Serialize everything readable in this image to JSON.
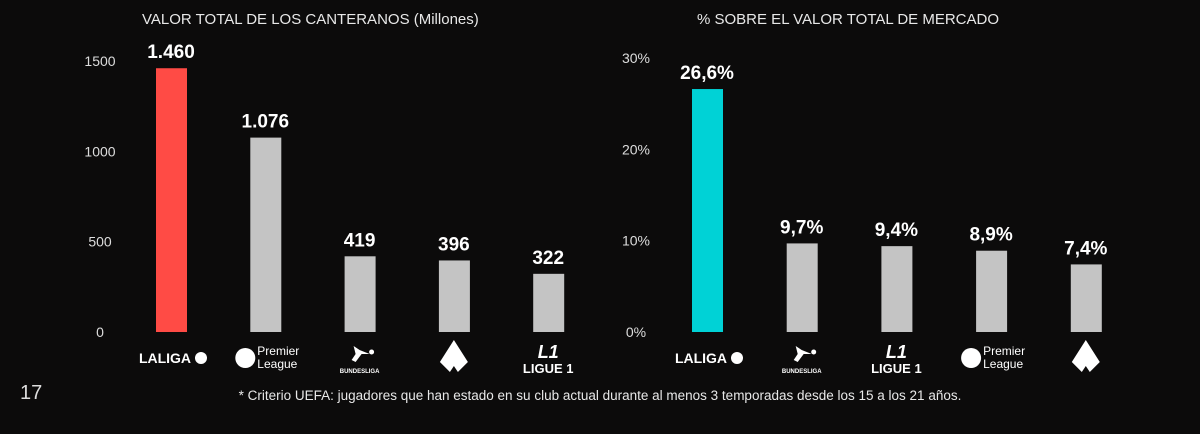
{
  "page_number": "17",
  "footnote": "* Criterio UEFA: jugadores que han estado en su club actual durante al menos 3 temporadas desde los 15 a los 21 años.",
  "chart_data": [
    {
      "type": "bar",
      "title": "VALOR TOTAL DE LOS CANTERANOS (Millones)",
      "categories": [
        "LALIGA",
        "Premier League",
        "BUNDESLIGA",
        "Serie A",
        "LIGUE 1"
      ],
      "values": [
        1460,
        1076,
        419,
        396,
        322
      ],
      "data_labels": [
        "1.460",
        "1.076",
        "419",
        "396",
        "322"
      ],
      "yticks": [
        "0",
        "500",
        "1000",
        "1500"
      ],
      "ylim": [
        0,
        1500
      ],
      "colors": [
        "#ff4b45",
        "#c4c4c4",
        "#c4c4c4",
        "#c4c4c4",
        "#c4c4c4"
      ],
      "grid": false
    },
    {
      "type": "bar",
      "title": "% SOBRE EL VALOR TOTAL DE MERCADO",
      "categories": [
        "LALIGA",
        "BUNDESLIGA",
        "LIGUE 1",
        "Premier League",
        "Serie A"
      ],
      "values": [
        26.6,
        9.7,
        9.4,
        8.9,
        7.4
      ],
      "data_labels": [
        "26,6%",
        "9,7%",
        "9,4%",
        "8,9%",
        "7,4%"
      ],
      "yticks": [
        "0%",
        "10%",
        "20%",
        "30%"
      ],
      "ylim": [
        0,
        30
      ],
      "colors": [
        "#00d2d6",
        "#c4c4c4",
        "#c4c4c4",
        "#c4c4c4",
        "#c4c4c4"
      ],
      "grid": false
    }
  ]
}
